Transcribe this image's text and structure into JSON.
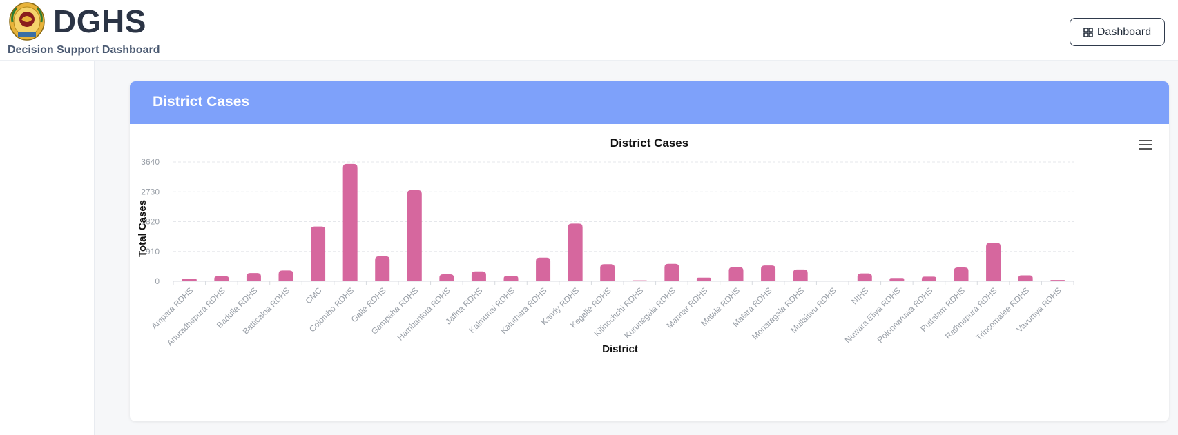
{
  "header": {
    "brand_title": "DGHS",
    "brand_subtitle": "Decision Support Dashboard",
    "dashboard_button_label": "Dashboard"
  },
  "card": {
    "title": "District Cases"
  },
  "colors": {
    "bar": "#d6679e",
    "card_header": "#7ea1fa",
    "grid": "#e5e7eb"
  },
  "chart_data": {
    "type": "bar",
    "title": "District Cases",
    "xlabel": "District",
    "ylabel": "Total Cases",
    "ylim": [
      0,
      3640
    ],
    "yticks": [
      0,
      910,
      1820,
      2730,
      3640
    ],
    "grid": true,
    "categories": [
      "Ampara RDHS",
      "Anuradhapura RDHS",
      "Badulla RDHS",
      "Batticaloa RDHS",
      "CMC",
      "Colombo RDHS",
      "Galle RDHS",
      "Gampaha RDHS",
      "Hambantota RDHS",
      "Jaffna RDHS",
      "Kalmunai RDHS",
      "Kaluthara RDHS",
      "Kandy RDHS",
      "Kegalle RDHS",
      "Kilinochchi RDHS",
      "Kurunegala RDHS",
      "Mannar RDHS",
      "Matale RDHS",
      "Matara RDHS",
      "Monaragala RDHS",
      "Mullaitivu RDHS",
      "NIHS",
      "Nuwara Eliya RDHS",
      "Polonnaruwa RDHS",
      "Puttalam RDHS",
      "Rathnapura RDHS",
      "Trincomalee RDHS",
      "Vavuniya RDHS"
    ],
    "series": [
      {
        "values": [
          80,
          150,
          250,
          330,
          1670,
          3580,
          760,
          2780,
          210,
          300,
          160,
          720,
          1760,
          520,
          30,
          530,
          110,
          430,
          480,
          360,
          20,
          240,
          100,
          140,
          420,
          1170,
          180,
          40
        ]
      }
    ]
  }
}
